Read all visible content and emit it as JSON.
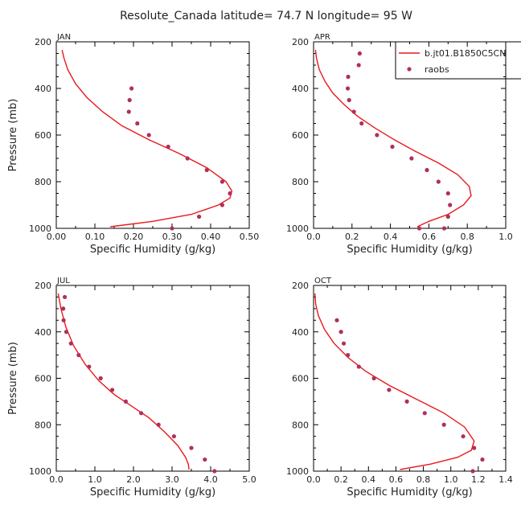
{
  "title": "Resolute_Canada   latitude= 74.7 N longitude= 95 W",
  "colors": {
    "model": "#e8191c",
    "obs": "#b0305a",
    "axis": "#000000"
  },
  "legend": {
    "model_label": "b.jt01.B1850C5CN",
    "obs_label": "raobs"
  },
  "chart_data": [
    {
      "type": "line",
      "panel_label": "JAN",
      "xlabel": "Specific Humidity (g/kg)",
      "ylabel": "Pressure (mb)",
      "xlim": [
        0,
        0.5
      ],
      "ylim": [
        200,
        1000
      ],
      "y_inverted": true,
      "x_ticks": [
        "0.00",
        "0.10",
        "0.20",
        "0.30",
        "0.40",
        "0.50"
      ],
      "y_ticks": [
        "200",
        "400",
        "600",
        "800",
        "1000"
      ],
      "series": [
        {
          "name": "b.jt01.B1850C5CN",
          "kind": "line",
          "x": [
            0.015,
            0.02,
            0.03,
            0.05,
            0.08,
            0.12,
            0.17,
            0.24,
            0.32,
            0.39,
            0.44,
            0.455,
            0.45,
            0.42,
            0.35,
            0.25,
            0.14
          ],
          "y": [
            235,
            270,
            320,
            380,
            440,
            500,
            560,
            620,
            680,
            740,
            800,
            840,
            870,
            900,
            940,
            970,
            993
          ]
        },
        {
          "name": "raobs",
          "kind": "scatter",
          "x": [
            0.195,
            0.19,
            0.188,
            0.21,
            0.24,
            0.29,
            0.34,
            0.39,
            0.43,
            0.45,
            0.43,
            0.37,
            0.3
          ],
          "y": [
            400,
            450,
            500,
            550,
            600,
            650,
            700,
            750,
            800,
            850,
            900,
            950,
            1000
          ]
        }
      ]
    },
    {
      "type": "line",
      "panel_label": "APR",
      "xlabel": "Specific Humidity (g/kg)",
      "ylabel": "",
      "xlim": [
        0,
        1.0
      ],
      "ylim": [
        200,
        1000
      ],
      "y_inverted": true,
      "x_ticks": [
        "0.0",
        "0.2",
        "0.4",
        "0.6",
        "0.8",
        "1.0"
      ],
      "y_ticks": [
        "200",
        "400",
        "600",
        "800",
        "1000"
      ],
      "show_legend": true,
      "series": [
        {
          "name": "b.jt01.B1850C5CN",
          "kind": "line",
          "x": [
            0.01,
            0.015,
            0.03,
            0.06,
            0.1,
            0.16,
            0.23,
            0.32,
            0.42,
            0.53,
            0.65,
            0.75,
            0.81,
            0.82,
            0.78,
            0.7,
            0.6,
            0.54
          ],
          "y": [
            235,
            270,
            320,
            370,
            420,
            470,
            520,
            570,
            620,
            670,
            720,
            770,
            820,
            860,
            900,
            940,
            970,
            993
          ]
        },
        {
          "name": "raobs",
          "kind": "scatter",
          "x": [
            0.24,
            0.235,
            0.18,
            0.178,
            0.185,
            0.21,
            0.25,
            0.33,
            0.41,
            0.51,
            0.59,
            0.65,
            0.7,
            0.71,
            0.7,
            0.68,
            0.55
          ],
          "y": [
            250,
            300,
            350,
            400,
            450,
            500,
            550,
            600,
            650,
            700,
            750,
            800,
            850,
            900,
            950,
            1000,
            1000
          ]
        }
      ]
    },
    {
      "type": "line",
      "panel_label": "JUL",
      "xlabel": "Specific Humidity (g/kg)",
      "ylabel": "Pressure (mb)",
      "xlim": [
        0,
        5.0
      ],
      "ylim": [
        200,
        1000
      ],
      "y_inverted": true,
      "x_ticks": [
        "0.0",
        "1.0",
        "2.0",
        "3.0",
        "4.0",
        "5.0"
      ],
      "y_ticks": [
        "200",
        "400",
        "600",
        "800",
        "1000"
      ],
      "series": [
        {
          "name": "b.jt01.B1850C5CN",
          "kind": "line",
          "x": [
            0.05,
            0.12,
            0.25,
            0.45,
            0.75,
            1.1,
            1.5,
            1.95,
            2.4,
            2.8,
            3.15,
            3.35,
            3.42,
            3.44
          ],
          "y": [
            235,
            300,
            380,
            460,
            540,
            610,
            670,
            720,
            770,
            830,
            890,
            940,
            970,
            993
          ]
        },
        {
          "name": "raobs",
          "kind": "scatter",
          "x": [
            0.22,
            0.18,
            0.19,
            0.26,
            0.38,
            0.58,
            0.85,
            1.15,
            1.45,
            1.8,
            2.2,
            2.65,
            3.05,
            3.5,
            3.85,
            4.1
          ],
          "y": [
            250,
            300,
            350,
            400,
            450,
            500,
            550,
            600,
            650,
            700,
            750,
            800,
            850,
            900,
            950,
            1000
          ]
        }
      ]
    },
    {
      "type": "line",
      "panel_label": "OCT",
      "xlabel": "Specific Humidity (g/kg)",
      "ylabel": "",
      "xlim": [
        0,
        1.4
      ],
      "ylim": [
        200,
        1000
      ],
      "y_inverted": true,
      "x_ticks": [
        "0.0",
        "0.2",
        "0.4",
        "0.6",
        "0.8",
        "1.0",
        "1.2",
        "1.4"
      ],
      "y_ticks": [
        "200",
        "400",
        "600",
        "800",
        "1000"
      ],
      "series": [
        {
          "name": "b.jt01.B1850C5CN",
          "kind": "line",
          "x": [
            0.01,
            0.015,
            0.035,
            0.08,
            0.15,
            0.25,
            0.38,
            0.55,
            0.75,
            0.95,
            1.1,
            1.17,
            1.15,
            1.05,
            0.85,
            0.63
          ],
          "y": [
            235,
            280,
            330,
            390,
            450,
            510,
            570,
            630,
            690,
            750,
            810,
            870,
            910,
            940,
            970,
            993
          ]
        },
        {
          "name": "raobs",
          "kind": "scatter",
          "x": [
            0.17,
            0.2,
            0.22,
            0.25,
            0.33,
            0.44,
            0.55,
            0.68,
            0.81,
            0.95,
            1.09,
            1.17,
            1.23,
            1.16
          ],
          "y": [
            350,
            400,
            450,
            500,
            550,
            600,
            650,
            700,
            750,
            800,
            850,
            900,
            950,
            1000
          ]
        }
      ]
    }
  ]
}
